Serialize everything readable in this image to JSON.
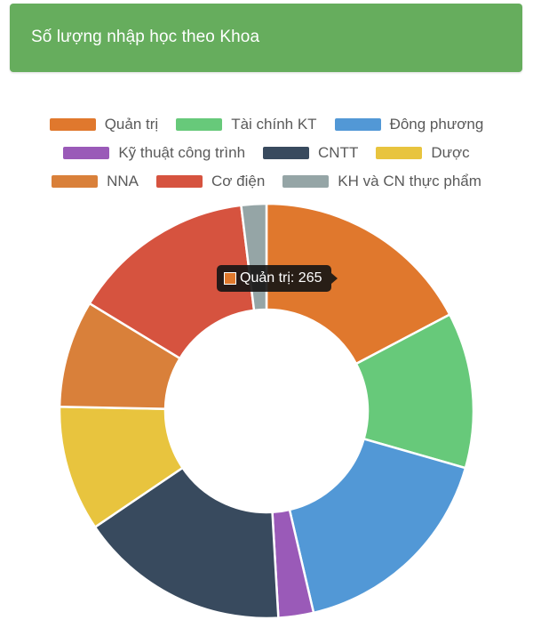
{
  "header": {
    "title": "Số lượng nhập học theo Khoa"
  },
  "tooltip": {
    "text": "Quản trị: 265",
    "swatch_color": "#e0782d"
  },
  "chart_data": {
    "type": "doughnut",
    "categories": [
      "Quản trị",
      "Tài chính KT",
      "Đông phương",
      "Kỹ thuật công trình",
      "CNTT",
      "Dược",
      "NNA",
      "Cơ điện",
      "KH và CN thực phẩm"
    ],
    "values": [
      265,
      186,
      259,
      42,
      252,
      150,
      128,
      220,
      30
    ],
    "colors": [
      "#e0782d",
      "#67c97a",
      "#5298d6",
      "#9a5ab8",
      "#384a5e",
      "#e8c43e",
      "#d9803a",
      "#d6533f",
      "#95a5a6"
    ],
    "legend": "top",
    "legend_rows": [
      [
        0,
        1,
        2
      ],
      [
        3,
        4,
        5
      ],
      [
        6,
        7,
        8
      ]
    ]
  }
}
